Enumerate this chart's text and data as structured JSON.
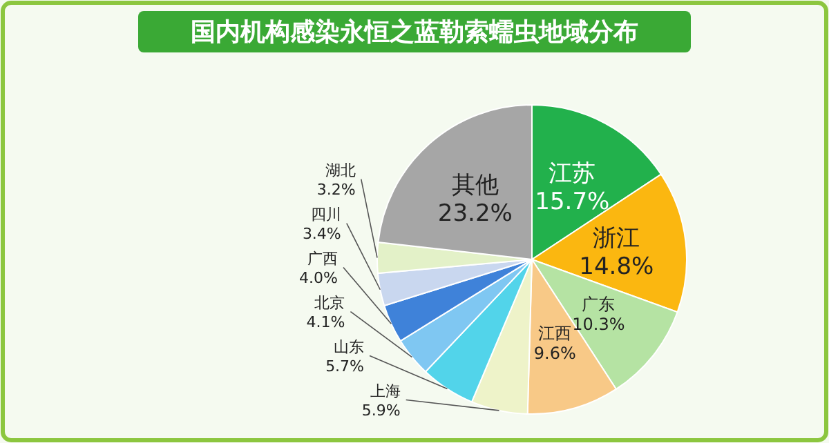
{
  "chart_data": {
    "type": "pie",
    "title": "国内机构感染永恒之蓝勒索蠕虫地域分布",
    "categories": [
      "江苏",
      "浙江",
      "广东",
      "江西",
      "上海",
      "山东",
      "北京",
      "广西",
      "四川",
      "湖北",
      "其他"
    ],
    "values": [
      15.7,
      14.8,
      10.3,
      9.6,
      5.9,
      5.7,
      4.1,
      4.0,
      3.4,
      3.2,
      23.2
    ],
    "value_labels": [
      "15.7%",
      "14.8%",
      "10.3%",
      "9.6%",
      "5.9%",
      "5.7%",
      "4.1%",
      "4.0%",
      "3.4%",
      "3.2%",
      "23.2%"
    ],
    "colors": [
      "#22b14c",
      "#fbb710",
      "#b5e3a3",
      "#f8c987",
      "#eef3c9",
      "#52d4ea",
      "#7fc7f2",
      "#3f82d9",
      "#c9d7ef",
      "#e3f1c8",
      "#a6a6a6"
    ]
  }
}
